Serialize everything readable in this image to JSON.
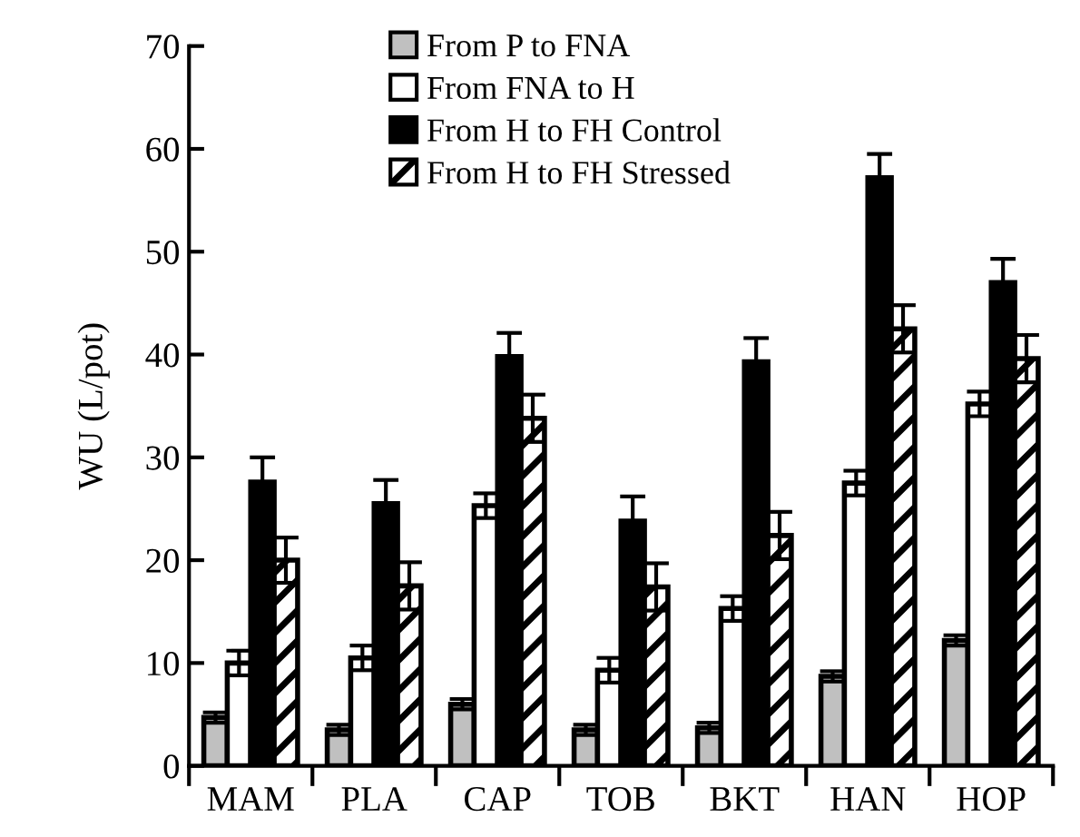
{
  "chart_data": {
    "type": "bar",
    "ylabel": "WU (L/pot)",
    "categories": [
      "MAM",
      "PLA",
      "CAP",
      "TOB",
      "BKT",
      "HAN",
      "HOP"
    ],
    "series": [
      {
        "name": "From P to FNA",
        "color": "#c0c0c0",
        "values": [
          4.7,
          3.5,
          6.0,
          3.5,
          3.7,
          8.7,
          12.2
        ],
        "errors": [
          0.5,
          0.5,
          0.5,
          0.5,
          0.5,
          0.5,
          0.5
        ]
      },
      {
        "name": "From FNA to H",
        "color": "#ffffff",
        "values": [
          10.0,
          10.5,
          25.3,
          9.3,
          15.3,
          27.5,
          35.2
        ],
        "errors": [
          1.2,
          1.2,
          1.2,
          1.2,
          1.2,
          1.2,
          1.2
        ]
      },
      {
        "name": "From H to FH Control",
        "color": "#000000",
        "values": [
          27.6,
          25.5,
          39.8,
          23.8,
          39.3,
          57.2,
          47.0
        ],
        "errors": [
          2.4,
          2.3,
          2.3,
          2.4,
          2.3,
          2.3,
          2.3
        ]
      },
      {
        "name": "From H to FH Stressed",
        "color": "#000000",
        "values": [
          20.0,
          17.5,
          33.8,
          17.4,
          22.4,
          42.5,
          39.6
        ],
        "errors": [
          2.2,
          2.3,
          2.3,
          2.3,
          2.3,
          2.3,
          2.3
        ]
      }
    ],
    "ylim": [
      0,
      70
    ],
    "yticks": [
      0,
      10,
      20,
      30,
      40,
      50,
      60,
      70
    ],
    "grid": false,
    "legend": "top"
  }
}
